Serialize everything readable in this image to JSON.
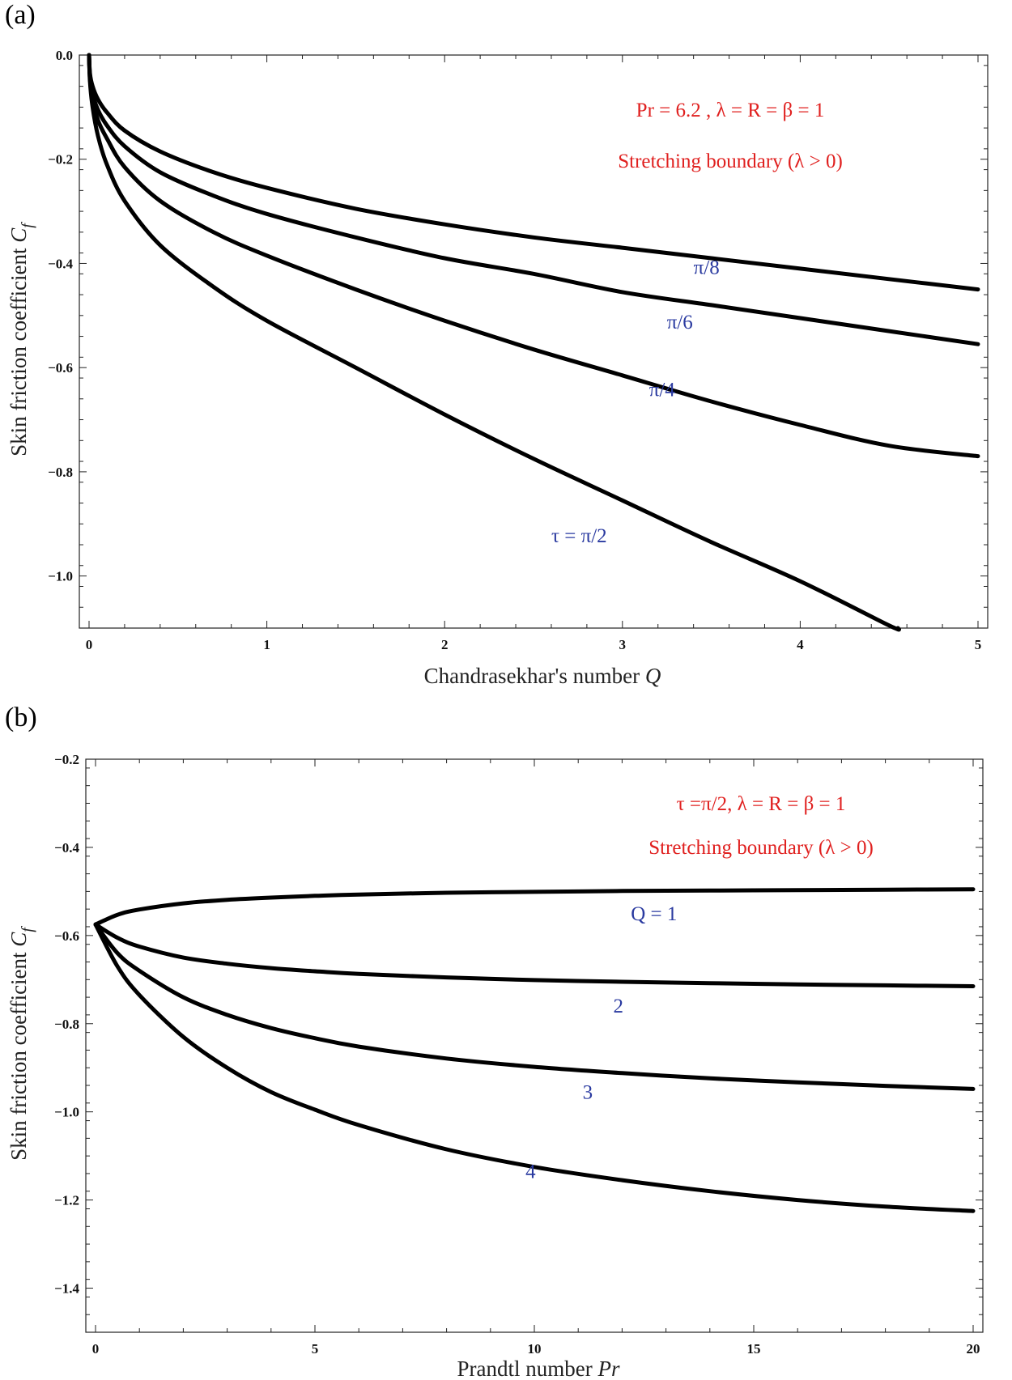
{
  "panels": [
    {
      "letter": "(a)",
      "chart_data": {
        "type": "line",
        "xlabel_text": "Chandrasekhar's number ",
        "xlabel_var": "Q",
        "ylabel_text": "Skin friction coefficient ",
        "ylabel_var": "C",
        "ylabel_sub": "f",
        "xlim": [
          0,
          5
        ],
        "ylim": [
          -1.1,
          0.0
        ],
        "xticks": [
          0,
          1,
          2,
          3,
          4,
          5
        ],
        "xtick_labels": [
          "0",
          "1",
          "2",
          "3",
          "4",
          "5"
        ],
        "yticks": [
          0.0,
          -0.2,
          -0.4,
          -0.6,
          -0.8,
          -1.0
        ],
        "ytick_labels": [
          "0.0",
          "−0.2",
          "−0.4",
          "−0.6",
          "−0.8",
          "−1.0"
        ],
        "annotation_line1": "Pr = 6.2 ,  λ = R = β = 1",
        "annotation_line2": "Stretching boundary (λ > 0)",
        "series": [
          {
            "name": "π/8",
            "label": "π/8",
            "label_x": 3.4,
            "label_y": -0.42,
            "x": [
              0,
              0.005,
              0.02,
              0.05,
              0.1,
              0.2,
              0.4,
              0.7,
              1.0,
              1.5,
              2.0,
              2.5,
              3.0,
              3.5,
              4.0,
              4.5,
              5.0
            ],
            "y": [
              0,
              -0.035,
              -0.06,
              -0.085,
              -0.11,
              -0.145,
              -0.185,
              -0.225,
              -0.255,
              -0.295,
              -0.325,
              -0.35,
              -0.37,
              -0.39,
              -0.41,
              -0.43,
              -0.45
            ]
          },
          {
            "name": "π/6",
            "label": "π/6",
            "label_x": 3.25,
            "label_y": -0.525,
            "x": [
              0,
              0.005,
              0.02,
              0.05,
              0.1,
              0.2,
              0.4,
              0.7,
              1.0,
              1.5,
              2.0,
              2.5,
              3.0,
              3.5,
              4.0,
              4.5,
              5.0
            ],
            "y": [
              0,
              -0.04,
              -0.075,
              -0.105,
              -0.135,
              -0.175,
              -0.225,
              -0.27,
              -0.305,
              -0.35,
              -0.39,
              -0.42,
              -0.455,
              -0.48,
              -0.505,
              -0.53,
              -0.555
            ]
          },
          {
            "name": "π/4",
            "label": "π/4",
            "label_x": 3.15,
            "label_y": -0.655,
            "x": [
              0,
              0.005,
              0.02,
              0.05,
              0.1,
              0.2,
              0.4,
              0.7,
              1.0,
              1.5,
              2.0,
              2.5,
              3.0,
              3.5,
              4.0,
              4.5,
              5.0
            ],
            "y": [
              0,
              -0.045,
              -0.085,
              -0.125,
              -0.16,
              -0.215,
              -0.28,
              -0.34,
              -0.385,
              -0.45,
              -0.51,
              -0.565,
              -0.615,
              -0.665,
              -0.71,
              -0.75,
              -0.77
            ]
          },
          {
            "name": "τ = π/2",
            "label": "τ = π/2",
            "label_x": 2.6,
            "label_y": -0.935,
            "x": [
              0,
              0.005,
              0.02,
              0.05,
              0.1,
              0.2,
              0.4,
              0.7,
              1.0,
              1.5,
              2.0,
              2.5,
              3.0,
              3.5,
              4.0,
              4.5,
              4.55
            ],
            "y": [
              0,
              -0.05,
              -0.1,
              -0.155,
              -0.21,
              -0.28,
              -0.365,
              -0.445,
              -0.51,
              -0.6,
              -0.69,
              -0.775,
              -0.855,
              -0.935,
              -1.01,
              -1.095,
              -1.1
            ]
          }
        ]
      }
    },
    {
      "letter": "(b)",
      "chart_data": {
        "type": "line",
        "xlabel_text": "Prandtl number ",
        "xlabel_var": "Pr",
        "ylabel_text": "Skin friction coefficient ",
        "ylabel_var": "C",
        "ylabel_sub": "f",
        "xlim": [
          0,
          20
        ],
        "ylim": [
          -1.5,
          -0.2
        ],
        "xticks": [
          0,
          5,
          10,
          15,
          20
        ],
        "xtick_labels": [
          "0",
          "5",
          "10",
          "15",
          "20"
        ],
        "yticks": [
          -0.2,
          -0.4,
          -0.6,
          -0.8,
          -1.0,
          -1.2,
          -1.4
        ],
        "ytick_labels": [
          "−0.2",
          "−0.4",
          "−0.6",
          "−0.8",
          "−1.0",
          "−1.2",
          "−1.4"
        ],
        "annotation_line1": "τ =π/2,  λ = R = β = 1",
        "annotation_line2": "Stretching boundary (λ > 0)",
        "series": [
          {
            "name": "Q = 1",
            "label": "Q = 1",
            "label_x": 12.2,
            "label_y": -0.565,
            "x": [
              0,
              0.5,
              1,
              2,
              3,
              4,
              5,
              6,
              8,
              10,
              12,
              14,
              16,
              18,
              20
            ],
            "y": [
              -0.575,
              -0.553,
              -0.541,
              -0.527,
              -0.519,
              -0.514,
              -0.51,
              -0.507,
              -0.503,
              -0.501,
              -0.499,
              -0.498,
              -0.497,
              -0.496,
              -0.495
            ]
          },
          {
            "name": "2",
            "label": "2",
            "label_x": 11.8,
            "label_y": -0.775,
            "x": [
              0,
              0.5,
              1,
              2,
              3,
              4,
              5,
              6,
              8,
              10,
              12,
              14,
              16,
              18,
              20
            ],
            "y": [
              -0.575,
              -0.605,
              -0.625,
              -0.65,
              -0.664,
              -0.674,
              -0.681,
              -0.687,
              -0.695,
              -0.701,
              -0.705,
              -0.708,
              -0.711,
              -0.713,
              -0.715
            ]
          },
          {
            "name": "3",
            "label": "3",
            "label_x": 11.1,
            "label_y": -0.97,
            "x": [
              0,
              0.5,
              1,
              2,
              3,
              4,
              5,
              6,
              8,
              10,
              12,
              14,
              16,
              18,
              20
            ],
            "y": [
              -0.575,
              -0.64,
              -0.68,
              -0.74,
              -0.78,
              -0.81,
              -0.833,
              -0.852,
              -0.879,
              -0.898,
              -0.912,
              -0.924,
              -0.933,
              -0.941,
              -0.948
            ]
          },
          {
            "name": "4",
            "label": "4",
            "label_x": 9.8,
            "label_y": -1.15,
            "x": [
              0,
              0.5,
              1,
              2,
              3,
              4,
              5,
              6,
              8,
              10,
              12,
              14,
              16,
              18,
              20
            ],
            "y": [
              -0.575,
              -0.67,
              -0.735,
              -0.83,
              -0.9,
              -0.955,
              -0.995,
              -1.03,
              -1.085,
              -1.125,
              -1.155,
              -1.18,
              -1.2,
              -1.215,
              -1.225
            ]
          }
        ]
      }
    }
  ]
}
